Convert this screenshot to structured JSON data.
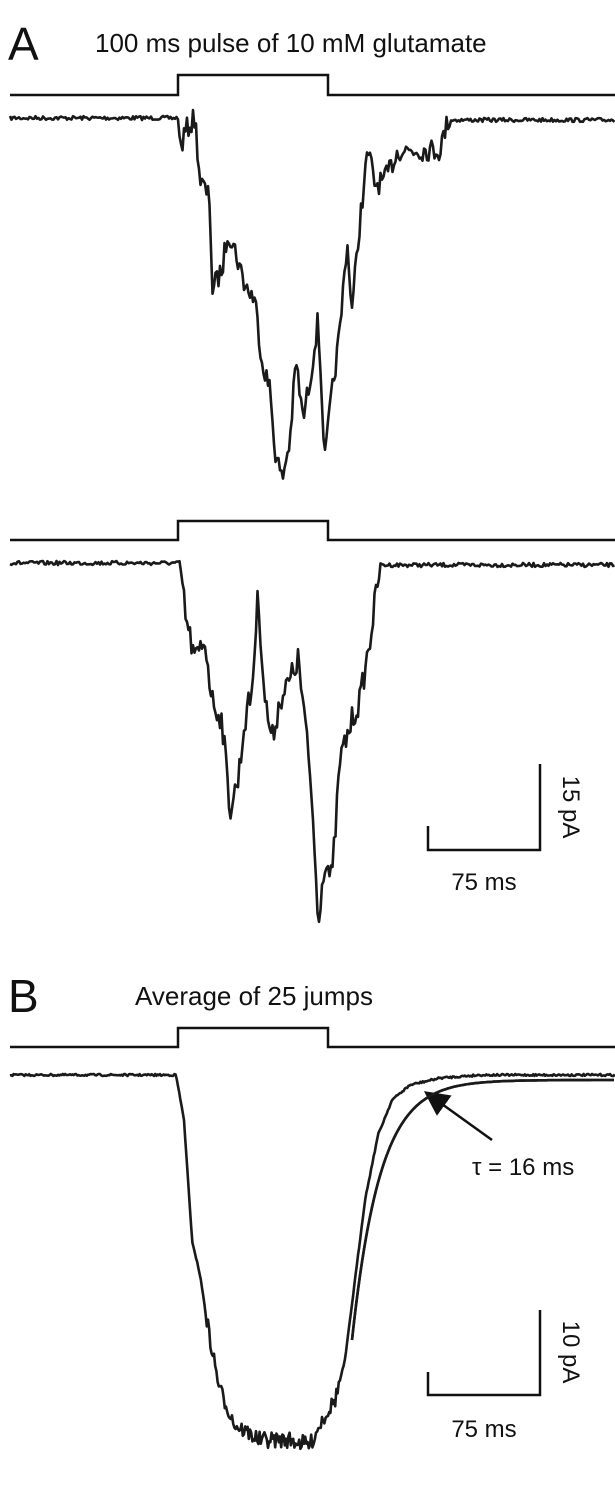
{
  "panel_a": {
    "label": "A",
    "title": "100 ms pulse of 10 mM glutamate",
    "scale_bar": {
      "current": "15 pA",
      "time": "75 ms"
    }
  },
  "panel_b": {
    "label": "B",
    "title": "Average of 25 jumps",
    "annotation": "τ = 16 ms",
    "scale_bar": {
      "current": "10 pA",
      "time": "75 ms"
    }
  }
}
